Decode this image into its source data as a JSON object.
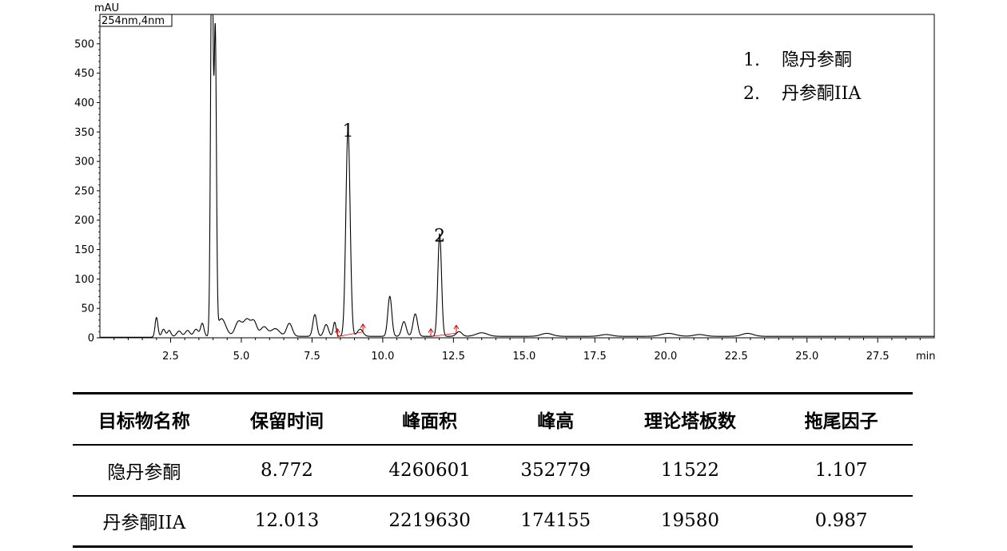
{
  "chart_data": {
    "type": "line",
    "ylabel": "mAU",
    "xlabel": "min",
    "detector_label": "254nm,4nm",
    "xlim": [
      0,
      29.5
    ],
    "ylim": [
      0,
      550
    ],
    "x_ticks": [
      2.5,
      5.0,
      7.5,
      10.0,
      12.5,
      15.0,
      17.5,
      20.0,
      22.5,
      25.0,
      27.5
    ],
    "x_tick_labels": [
      "2.5",
      "5.0",
      "7.5",
      "10.0",
      "12.5",
      "15.0",
      "17.5",
      "20.0",
      "22.5",
      "25.0",
      "27.5"
    ],
    "y_ticks": [
      0,
      50,
      100,
      150,
      200,
      250,
      300,
      350,
      400,
      450,
      500
    ],
    "y_tick_labels": [
      "0",
      "50",
      "100",
      "150",
      "200",
      "250",
      "300",
      "350",
      "400",
      "450",
      "500"
    ],
    "baseline": 1,
    "peaks": [
      {
        "rt": 2.0,
        "height": 32,
        "width": 0.05
      },
      {
        "rt": 2.25,
        "height": 12,
        "width": 0.06
      },
      {
        "rt": 2.45,
        "height": 10,
        "width": 0.06
      },
      {
        "rt": 2.8,
        "height": 9,
        "width": 0.08
      },
      {
        "rt": 3.1,
        "height": 10,
        "width": 0.08
      },
      {
        "rt": 3.4,
        "height": 12,
        "width": 0.08
      },
      {
        "rt": 3.62,
        "height": 22,
        "width": 0.06
      },
      {
        "rt": 3.96,
        "height": 700,
        "width": 0.045
      },
      {
        "rt": 4.08,
        "height": 500,
        "width": 0.04
      },
      {
        "rt": 4.3,
        "height": 30,
        "width": 0.15
      },
      {
        "rt": 4.9,
        "height": 25,
        "width": 0.12
      },
      {
        "rt": 5.2,
        "height": 28,
        "width": 0.12
      },
      {
        "rt": 5.45,
        "height": 24,
        "width": 0.1
      },
      {
        "rt": 5.8,
        "height": 16,
        "width": 0.12
      },
      {
        "rt": 6.2,
        "height": 13,
        "width": 0.15
      },
      {
        "rt": 6.7,
        "height": 22,
        "width": 0.1
      },
      {
        "rt": 7.6,
        "height": 37,
        "width": 0.07
      },
      {
        "rt": 8.0,
        "height": 20,
        "width": 0.08
      },
      {
        "rt": 8.3,
        "height": 24,
        "width": 0.05
      },
      {
        "rt": 8.772,
        "height": 352.8,
        "width": 0.075
      },
      {
        "rt": 9.2,
        "height": 12,
        "width": 0.1
      },
      {
        "rt": 10.25,
        "height": 68,
        "width": 0.07
      },
      {
        "rt": 10.75,
        "height": 25,
        "width": 0.08
      },
      {
        "rt": 11.15,
        "height": 38,
        "width": 0.08
      },
      {
        "rt": 12.013,
        "height": 174.2,
        "width": 0.065
      },
      {
        "rt": 12.7,
        "height": 8,
        "width": 0.1
      },
      {
        "rt": 13.5,
        "height": 6,
        "width": 0.2
      },
      {
        "rt": 15.8,
        "height": 5,
        "width": 0.2
      },
      {
        "rt": 20.1,
        "height": 5,
        "width": 0.25
      },
      {
        "rt": 22.9,
        "height": 5,
        "width": 0.2
      },
      {
        "rt": 21.2,
        "height": 3,
        "width": 0.2
      },
      {
        "rt": 17.9,
        "height": 3,
        "width": 0.2
      }
    ],
    "peak_labels": [
      {
        "text": "1",
        "x": 8.772,
        "y": 352.8
      },
      {
        "text": "2",
        "x": 12.013,
        "y": 174.2
      }
    ],
    "integration_marks": [
      {
        "x": 8.4,
        "y": 2
      },
      {
        "x": 9.3,
        "y": 10
      },
      {
        "x": 11.7,
        "y": 2
      },
      {
        "x": 12.6,
        "y": 8
      }
    ],
    "integration_baselines": [
      {
        "x1": 8.4,
        "y1": 2,
        "x2": 9.3,
        "y2": 10
      },
      {
        "x1": 11.7,
        "y1": 2,
        "x2": 12.6,
        "y2": 8
      }
    ],
    "legend": {
      "placement": "top-right",
      "items": [
        {
          "num": "1.",
          "name": "隐丹参酮"
        },
        {
          "num": "2.",
          "name": "丹参酮IIA"
        }
      ]
    },
    "colors": {
      "trace": "#000000",
      "integration": "#dd0000",
      "axis": "#000000"
    }
  },
  "table": {
    "headers": [
      "目标物名称",
      "保留时间",
      "峰面积",
      "峰高",
      "理论塔板数",
      "拖尾因子"
    ],
    "rows": [
      [
        "隐丹参酮",
        "8.772",
        "4260601",
        "352779",
        "11522",
        "1.107"
      ],
      [
        "丹参酮IIA",
        "12.013",
        "2219630",
        "174155",
        "19580",
        "0.987"
      ]
    ]
  }
}
